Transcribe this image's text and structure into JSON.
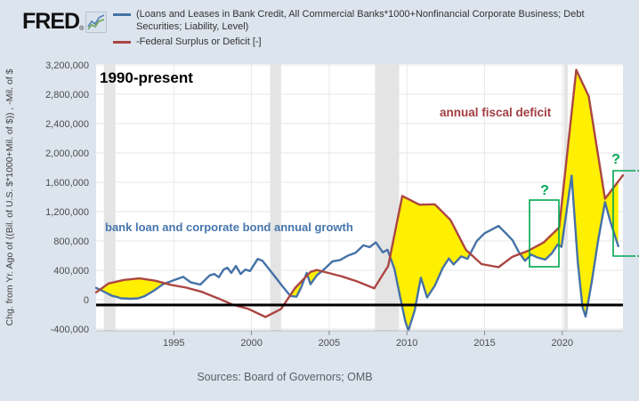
{
  "header": {
    "logo_text": "FRED",
    "logo_reg": "®",
    "legend": [
      {
        "name": "credit",
        "color": "#4572a7",
        "label": "(Loans and Leases in Bank Credit, All Commercial Banks*1000+Nonfinancial Corporate Business; Debt Securities; Liability, Level)"
      },
      {
        "name": "deficit",
        "color": "#ab4642",
        "label": "-Federal Surplus or Deficit [-]"
      }
    ]
  },
  "footer": {
    "sources": "Sources: Board of Governors; OMB"
  },
  "chart_data": {
    "type": "line",
    "title": "1990-present",
    "ylabel": "Chg. from Yr. Ago of ((Bil. of U.S. $*1000+Mil. of $)) , -Mil. of $",
    "xlabel": "",
    "xlim": [
      1990,
      2023.9
    ],
    "ylim": [
      -425000,
      3250000
    ],
    "grid": true,
    "legend_position": "top-left",
    "x_axis": {
      "ticks": [
        {
          "v": 1995,
          "label": "1995"
        },
        {
          "v": 2000,
          "label": "2000"
        },
        {
          "v": 2005,
          "label": "2005"
        },
        {
          "v": 2010,
          "label": "2010"
        },
        {
          "v": 2015,
          "label": "2015"
        },
        {
          "v": 2020,
          "label": "2020"
        }
      ]
    },
    "y_axis": {
      "ticks": [
        {
          "v": 3200000,
          "label": "3,200,000"
        },
        {
          "v": 2800000,
          "label": "2,800,000"
        },
        {
          "v": 2400000,
          "label": "2,400,000"
        },
        {
          "v": 2000000,
          "label": "2,000,000"
        },
        {
          "v": 1600000,
          "label": "1,600,000"
        },
        {
          "v": 1200000,
          "label": "1,200,000"
        },
        {
          "v": 800000,
          "label": "800,000"
        },
        {
          "v": 400000,
          "label": "400,000"
        },
        {
          "v": 0,
          "label": "0"
        },
        {
          "v": -400000,
          "label": "-400,000"
        }
      ]
    },
    "recession_bands": [
      [
        1990.5,
        1991.25
      ],
      [
        2001.2,
        2001.9
      ],
      [
        2007.95,
        2009.5
      ],
      [
        2020.1,
        2020.35
      ]
    ],
    "fill_between": {
      "color": "#ffef00",
      "rule": "deficit_above_credit"
    },
    "zero_emphasis_line": {
      "color": "#000000",
      "value": -70000
    },
    "series": [
      {
        "name": "credit",
        "color": "#4572a7",
        "points": [
          [
            1990.0,
            160000
          ],
          [
            1990.5,
            110000
          ],
          [
            1991.0,
            55000
          ],
          [
            1991.6,
            20000
          ],
          [
            1992.2,
            12000
          ],
          [
            1992.7,
            18000
          ],
          [
            1993.1,
            45000
          ],
          [
            1993.7,
            120000
          ],
          [
            1994.3,
            210000
          ],
          [
            1995.0,
            265000
          ],
          [
            1995.6,
            310000
          ],
          [
            1996.1,
            235000
          ],
          [
            1996.7,
            205000
          ],
          [
            1997.3,
            330000
          ],
          [
            1997.6,
            350000
          ],
          [
            1997.9,
            305000
          ],
          [
            1998.2,
            410000
          ],
          [
            1998.45,
            435000
          ],
          [
            1998.7,
            365000
          ],
          [
            1999.0,
            460000
          ],
          [
            1999.3,
            350000
          ],
          [
            1999.6,
            410000
          ],
          [
            1999.9,
            390000
          ],
          [
            2000.4,
            555000
          ],
          [
            2000.7,
            530000
          ],
          [
            2001.0,
            450000
          ],
          [
            2001.6,
            290000
          ],
          [
            2002.0,
            180000
          ],
          [
            2002.5,
            50000
          ],
          [
            2002.9,
            40000
          ],
          [
            2003.2,
            170000
          ],
          [
            2003.55,
            365000
          ],
          [
            2003.8,
            210000
          ],
          [
            2004.2,
            330000
          ],
          [
            2004.7,
            420000
          ],
          [
            2005.2,
            520000
          ],
          [
            2005.7,
            540000
          ],
          [
            2006.2,
            600000
          ],
          [
            2006.7,
            640000
          ],
          [
            2007.2,
            740000
          ],
          [
            2007.6,
            715000
          ],
          [
            2008.0,
            780000
          ],
          [
            2008.45,
            645000
          ],
          [
            2008.75,
            680000
          ],
          [
            2009.2,
            420000
          ],
          [
            2009.6,
            0
          ],
          [
            2009.9,
            -300000
          ],
          [
            2010.1,
            -420000
          ],
          [
            2010.5,
            -150000
          ],
          [
            2010.9,
            300000
          ],
          [
            2011.3,
            30000
          ],
          [
            2011.8,
            190000
          ],
          [
            2012.3,
            430000
          ],
          [
            2012.7,
            560000
          ],
          [
            2013.0,
            480000
          ],
          [
            2013.5,
            590000
          ],
          [
            2013.9,
            555000
          ],
          [
            2014.5,
            800000
          ],
          [
            2015.0,
            905000
          ],
          [
            2015.5,
            960000
          ],
          [
            2015.9,
            1005000
          ],
          [
            2016.4,
            900000
          ],
          [
            2016.8,
            810000
          ],
          [
            2017.2,
            650000
          ],
          [
            2017.6,
            530000
          ],
          [
            2018.0,
            615000
          ],
          [
            2018.4,
            575000
          ],
          [
            2018.9,
            545000
          ],
          [
            2019.3,
            625000
          ],
          [
            2019.7,
            750000
          ],
          [
            2019.95,
            720000
          ],
          [
            2020.6,
            1690000
          ],
          [
            2021.0,
            500000
          ],
          [
            2021.3,
            -100000
          ],
          [
            2021.5,
            -230000
          ],
          [
            2021.9,
            250000
          ],
          [
            2022.3,
            800000
          ],
          [
            2022.75,
            1330000
          ],
          [
            2023.1,
            1060000
          ],
          [
            2023.6,
            730000
          ]
        ]
      },
      {
        "name": "deficit",
        "color": "#ab4642",
        "points": [
          [
            1990.0,
            100000
          ],
          [
            1990.8,
            221000
          ],
          [
            1991.8,
            269000
          ],
          [
            1992.8,
            290000
          ],
          [
            1993.8,
            258000
          ],
          [
            1994.8,
            203000
          ],
          [
            1995.8,
            164000
          ],
          [
            1996.8,
            107000
          ],
          [
            1997.8,
            22000
          ],
          [
            1998.8,
            -69000
          ],
          [
            1999.8,
            -126000
          ],
          [
            2000.9,
            -236000
          ],
          [
            2001.9,
            -128000
          ],
          [
            2002.8,
            158000
          ],
          [
            2003.8,
            378000
          ],
          [
            2004.2,
            405000
          ],
          [
            2005.8,
            318000
          ],
          [
            2006.8,
            248000
          ],
          [
            2007.9,
            155000
          ],
          [
            2008.8,
            459000
          ],
          [
            2009.7,
            1413000
          ],
          [
            2010.8,
            1294000
          ],
          [
            2011.8,
            1300000
          ],
          [
            2012.8,
            1087000
          ],
          [
            2013.8,
            680000
          ],
          [
            2014.8,
            485000
          ],
          [
            2015.9,
            442000
          ],
          [
            2016.8,
            585000
          ],
          [
            2017.8,
            665000
          ],
          [
            2018.8,
            779000
          ],
          [
            2019.8,
            984000
          ],
          [
            2020.9,
            3132000
          ],
          [
            2021.7,
            2772000
          ],
          [
            2022.75,
            1375000
          ],
          [
            2023.9,
            1695000
          ]
        ]
      }
    ],
    "annotations": {
      "deficit_label": "annual fiscal deficit",
      "growth_label": "bank loan and corporate bond annual growth",
      "question_mark_left": "?",
      "question_mark_right": "?",
      "highlight_color": "#00a651"
    }
  }
}
